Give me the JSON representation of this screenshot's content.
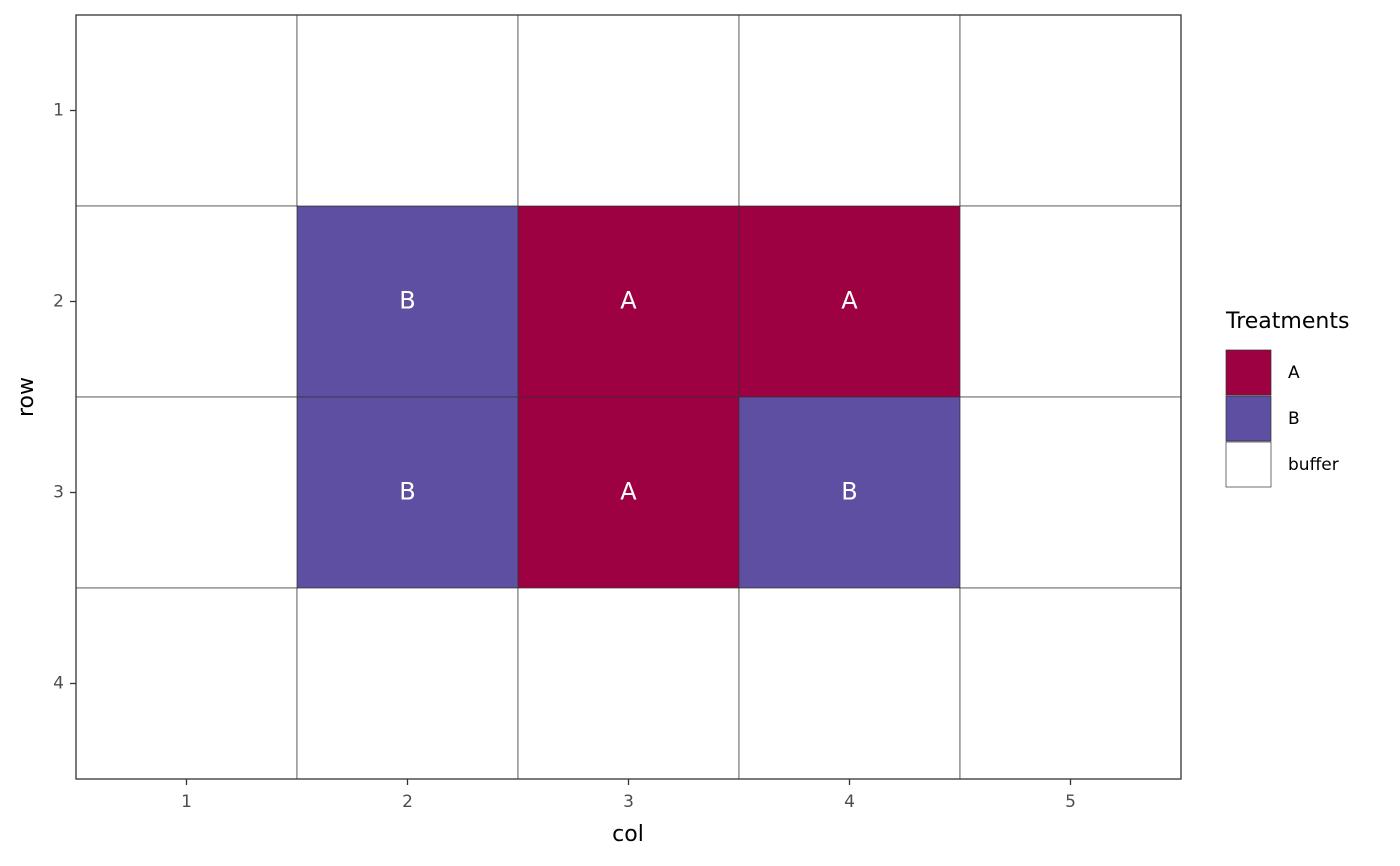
{
  "chart_data": {
    "type": "tile",
    "x_label": "col",
    "y_label": "row",
    "xlim": [
      0.5,
      5.5
    ],
    "ylim": [
      4.5,
      0.5
    ],
    "xticks": [
      1,
      2,
      3,
      4,
      5
    ],
    "yticks": [
      1,
      2,
      3,
      4
    ],
    "legend": {
      "title": "Treatments",
      "position": "right"
    },
    "series": [
      {
        "name": "A",
        "color": "#9E0142",
        "x": [
          3,
          4,
          3
        ],
        "y": [
          2,
          2,
          3
        ],
        "labels": [
          "A",
          "A",
          "A"
        ]
      },
      {
        "name": "B",
        "color": "#5E4FA2",
        "x": [
          2,
          2,
          4
        ],
        "y": [
          2,
          3,
          3
        ],
        "labels": [
          "B",
          "B",
          "B"
        ]
      },
      {
        "name": "buffer",
        "color": "#FFFFFF",
        "x": [
          1,
          2,
          3,
          4,
          5,
          1,
          5,
          1,
          5,
          1,
          2,
          3,
          4,
          5
        ],
        "y": [
          1,
          1,
          1,
          1,
          1,
          2,
          2,
          3,
          3,
          4,
          4,
          4,
          4,
          4
        ]
      }
    ]
  }
}
